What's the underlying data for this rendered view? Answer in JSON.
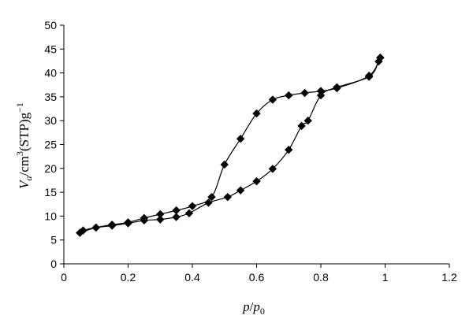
{
  "chart_data": {
    "type": "scatter",
    "title": "",
    "xlabel": {
      "main": "p",
      "slash": "/",
      "sub_base": "p",
      "subscript": "0"
    },
    "ylabel": {
      "v": "V",
      "sub": "a",
      "unit1": "/cm",
      "sup3": "3",
      "unit2": "(STP)g",
      "sup": "−1"
    },
    "xlim": [
      0,
      1.2
    ],
    "ylim": [
      0,
      50
    ],
    "x_ticks": [
      "0",
      "0.2",
      "0.4",
      "0.6",
      "0.8",
      "1",
      "1.2"
    ],
    "y_ticks": [
      "0",
      "5",
      "10",
      "15",
      "20",
      "25",
      "30",
      "35",
      "40",
      "45",
      "50"
    ],
    "grid": false,
    "legend": "none",
    "marker": "diamond",
    "color": "#000000",
    "series": [
      {
        "values_desc": "adsorption",
        "points": [
          [
            0.05,
            6.5
          ],
          [
            0.06,
            7.0
          ],
          [
            0.1,
            7.6
          ],
          [
            0.15,
            8.0
          ],
          [
            0.2,
            8.5
          ],
          [
            0.25,
            9.1
          ],
          [
            0.3,
            9.3
          ],
          [
            0.35,
            9.8
          ],
          [
            0.39,
            10.6
          ],
          [
            0.45,
            12.8
          ],
          [
            0.51,
            14.0
          ],
          [
            0.55,
            15.4
          ],
          [
            0.6,
            17.3
          ],
          [
            0.65,
            19.9
          ],
          [
            0.7,
            23.9
          ],
          [
            0.74,
            28.9
          ],
          [
            0.76,
            30.0
          ],
          [
            0.8,
            35.3
          ],
          [
            0.85,
            37.0
          ],
          [
            0.95,
            39.2
          ],
          [
            0.98,
            42.4
          ],
          [
            0.985,
            43.2
          ]
        ]
      },
      {
        "values_desc": "desorption",
        "points": [
          [
            0.985,
            43.2
          ],
          [
            0.95,
            39.4
          ],
          [
            0.85,
            36.8
          ],
          [
            0.8,
            36.2
          ],
          [
            0.75,
            35.8
          ],
          [
            0.7,
            35.3
          ],
          [
            0.65,
            34.4
          ],
          [
            0.6,
            31.5
          ],
          [
            0.55,
            26.2
          ],
          [
            0.5,
            20.8
          ],
          [
            0.46,
            14.0
          ],
          [
            0.4,
            12.1
          ],
          [
            0.35,
            11.2
          ],
          [
            0.3,
            10.4
          ],
          [
            0.25,
            9.6
          ],
          [
            0.2,
            8.7
          ],
          [
            0.15,
            8.2
          ],
          [
            0.1,
            7.6
          ],
          [
            0.05,
            6.5
          ]
        ]
      }
    ]
  }
}
